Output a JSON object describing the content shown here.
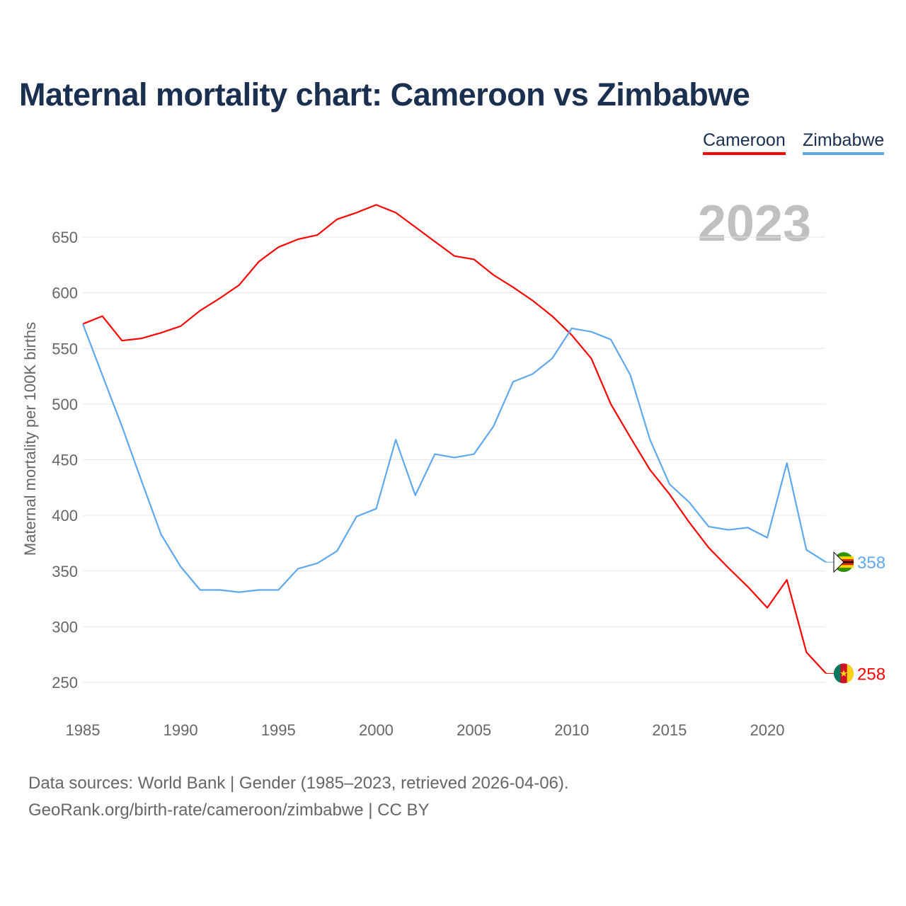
{
  "chart_data": {
    "type": "line",
    "title": "Maternal mortality chart: Cameroon vs Zimbabwe",
    "ylabel": "Maternal mortality per 100K births",
    "xlabel": "",
    "year_label": "2023",
    "xlim": [
      1985,
      2023
    ],
    "ylim": [
      230,
      690
    ],
    "xticks": [
      1985,
      1990,
      1995,
      2000,
      2005,
      2010,
      2015,
      2020
    ],
    "yticks": [
      250,
      300,
      350,
      400,
      450,
      500,
      550,
      600,
      650
    ],
    "grid": true,
    "legend_placement": "top-right",
    "x": [
      1985,
      1986,
      1987,
      1988,
      1989,
      1990,
      1991,
      1992,
      1993,
      1994,
      1995,
      1996,
      1997,
      1998,
      1999,
      2000,
      2001,
      2002,
      2003,
      2004,
      2005,
      2006,
      2007,
      2008,
      2009,
      2010,
      2011,
      2012,
      2013,
      2014,
      2015,
      2016,
      2017,
      2018,
      2019,
      2020,
      2021,
      2022,
      2023
    ],
    "series": [
      {
        "name": "Cameroon",
        "color": "#ff0000",
        "end_label": "258",
        "values": [
          572,
          579,
          557,
          559,
          564,
          570,
          584,
          595,
          607,
          628,
          641,
          648,
          652,
          666,
          672,
          679,
          672,
          659,
          646,
          633,
          630,
          616,
          605,
          593,
          579,
          562,
          541,
          500,
          470,
          441,
          419,
          394,
          371,
          353,
          336,
          317,
          342,
          277,
          258
        ]
      },
      {
        "name": "Zimbabwe",
        "color": "#5fa8ee",
        "end_label": "358",
        "values": [
          572,
          526,
          480,
          431,
          383,
          354,
          333,
          333,
          331,
          333,
          333,
          352,
          357,
          368,
          399,
          406,
          468,
          418,
          455,
          452,
          455,
          480,
          520,
          527,
          541,
          568,
          565,
          558,
          526,
          468,
          428,
          412,
          390,
          387,
          389,
          380,
          447,
          369,
          358
        ]
      }
    ]
  },
  "footer": {
    "line1": "Data sources: World Bank | Gender (1985–2023, retrieved 2026-04-06).",
    "line2": "GeoRank.org/birth-rate/cameroon/zimbabwe | CC BY"
  }
}
